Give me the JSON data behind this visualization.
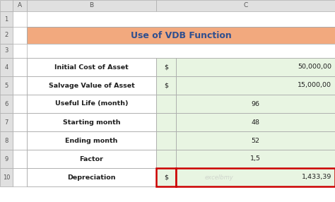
{
  "title": "Use of VDB Function",
  "title_bg": "#F2A97E",
  "title_color": "#2F4F8F",
  "rows": [
    {
      "label": "Initial Cost of Asset",
      "col2": "$",
      "col3": "50,000,00",
      "col3_align": "right"
    },
    {
      "label": "Salvage Value of Asset",
      "col2": "$",
      "col3": "15,000,00",
      "col3_align": "right"
    },
    {
      "label": "Useful Life (month)",
      "col2": "",
      "col3": "96",
      "col3_align": "center"
    },
    {
      "label": "Starting month",
      "col2": "",
      "col3": "48",
      "col3_align": "center"
    },
    {
      "label": "Ending month",
      "col2": "",
      "col3": "52",
      "col3_align": "center"
    },
    {
      "label": "Factor",
      "col2": "",
      "col3": "1,5",
      "col3_align": "center"
    },
    {
      "label": "Depreciation",
      "col2": "$",
      "col3": "1,433,39",
      "col3_align": "right"
    }
  ],
  "header_bg": "#E0E0E0",
  "cell_bg_light": "#E8F5E2",
  "cell_bg_white": "#FFFFFF",
  "grid_color": "#AAAAAA",
  "text_color_dark": "#1F1F1F",
  "label_font_size": 6.8,
  "value_font_size": 6.8,
  "last_row_border_color": "#CC0000",
  "watermark": "excelbmy"
}
